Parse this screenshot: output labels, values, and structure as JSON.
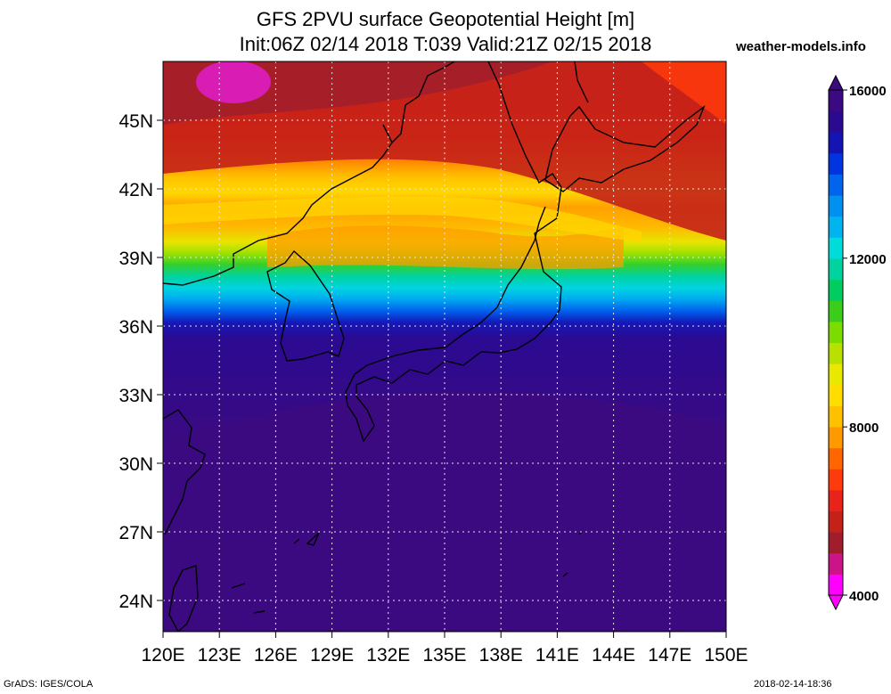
{
  "header": {
    "title_line1": "GFS 2PVU surface Geopotential Height [m]",
    "title_line2": "Init:06Z 02/14 2018 T:039 Valid:21Z 02/15 2018",
    "site": "weather-models.info"
  },
  "map": {
    "lat_labels": [
      "45N",
      "42N",
      "39N",
      "36N",
      "33N",
      "30N",
      "27N",
      "24N"
    ],
    "lon_labels": [
      "120E",
      "123E",
      "126E",
      "129E",
      "132E",
      "135E",
      "138E",
      "141E",
      "144E",
      "147E",
      "150E"
    ]
  },
  "colorbar": {
    "labels": [
      "16000",
      "12000",
      "8000",
      "4000"
    ],
    "colors": [
      "#ff00ff",
      "#cc1488",
      "#a01e2c",
      "#c42218",
      "#e8231a",
      "#ff3a0c",
      "#ff6600",
      "#ff9900",
      "#ffc000",
      "#ffdd00",
      "#e8e800",
      "#b8e000",
      "#7cdc00",
      "#3ccc1c",
      "#00cc60",
      "#00d2a0",
      "#00dcd8",
      "#00b4f0",
      "#0090f0",
      "#0064ec",
      "#0034e0",
      "#1414b4",
      "#2b0a92",
      "#3c0a80"
    ]
  },
  "footer": {
    "left": "GrADS: IGES/COLA",
    "right": "2018-02-14-18:36"
  }
}
